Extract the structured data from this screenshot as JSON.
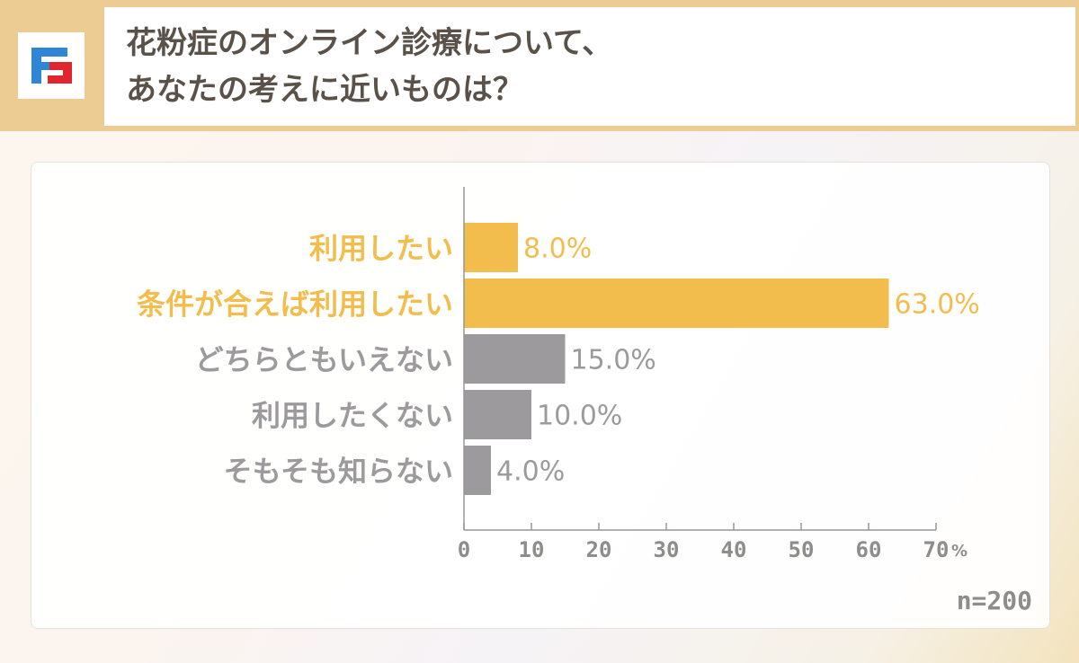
{
  "header": {
    "title_line1": "花粉症のオンライン診療について、",
    "title_line2": "あなたの考えに近いものは？",
    "logo_icon": "brand-logo-icon"
  },
  "colors": {
    "highlight": "#f2bd4c",
    "neutral": "#9d9a9d",
    "header_band": "#eccc92"
  },
  "chart_data": {
    "type": "bar",
    "orientation": "horizontal",
    "categories": [
      "利用したい",
      "条件が合えば利用したい",
      "どちらともいえない",
      "利用したくない",
      "そもそも知らない"
    ],
    "values": [
      8.0,
      63.0,
      15.0,
      10.0,
      4.0
    ],
    "data_labels": [
      "8.0%",
      "63.0%",
      "15.0%",
      "10.0%",
      "4.0%"
    ],
    "highlighted": [
      true,
      true,
      false,
      false,
      false
    ],
    "xlim": [
      0,
      70
    ],
    "xticks": [
      0,
      10,
      20,
      30,
      40,
      50,
      60,
      70
    ],
    "xtick_labels": [
      "0",
      "10",
      "20",
      "30",
      "40",
      "50",
      "60",
      "70"
    ],
    "x_unit": "%",
    "grid": false,
    "note": "n=200"
  }
}
